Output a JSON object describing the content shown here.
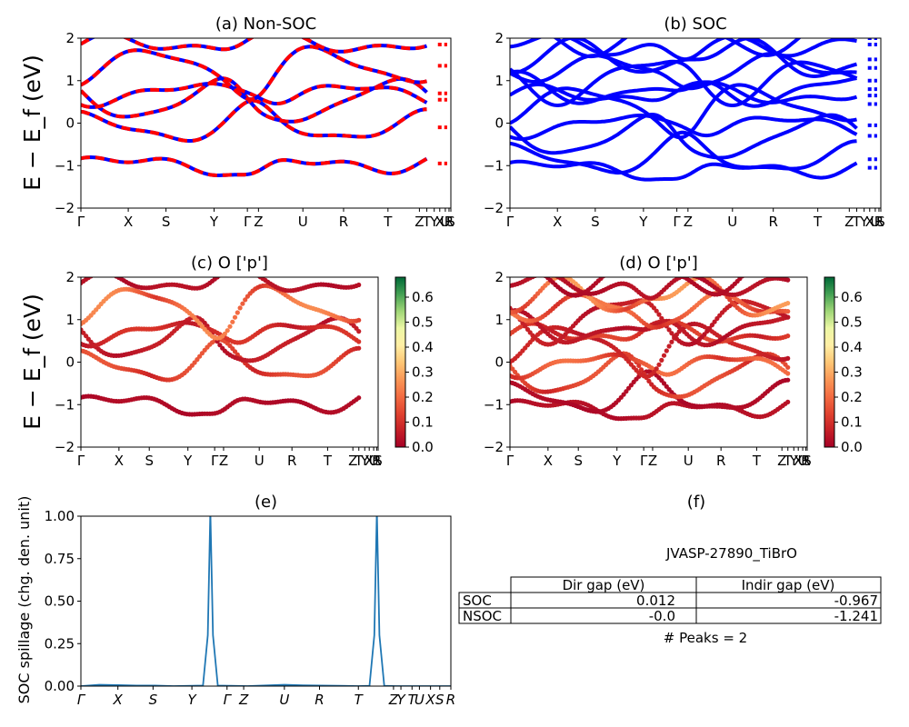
{
  "figure": {
    "material_id": "JVASP-27890_TiBrO",
    "ylabel_band": "E − E_f (eV)",
    "ylabel_spill": "SOC spillage (chg. den. unit)"
  },
  "chart_data": [
    {
      "id": "a",
      "type": "line",
      "title": "(a) Non-SOC",
      "ylim": [
        -2,
        2
      ],
      "yticks": [
        -2,
        -1,
        0,
        1,
        2
      ],
      "xticks": [
        "Γ",
        "X",
        "S",
        "Y",
        "Γ",
        "Z",
        "U",
        "R",
        "T",
        "Z",
        "T",
        "Y",
        "X",
        "U",
        "R",
        "S"
      ],
      "xtick_pos": [
        0,
        0.128,
        0.23,
        0.36,
        0.45,
        0.48,
        0.6,
        0.71,
        0.83,
        0.915,
        0.935,
        0.955,
        0.97,
        0.985,
        0.995,
        1.0
      ],
      "series": [
        {
          "style": "red dashed over blue",
          "bands": [
            -0.95,
            -0.1,
            0.55,
            0.7,
            1.35,
            1.85
          ]
        }
      ]
    },
    {
      "id": "b",
      "type": "line",
      "title": "(b) SOC",
      "ylim": [
        -2,
        2
      ],
      "yticks": [
        -2,
        -1,
        0,
        1,
        2
      ],
      "xticks": [
        "Γ",
        "X",
        "S",
        "Y",
        "Γ",
        "Z",
        "U",
        "R",
        "T",
        "Z",
        "T",
        "Y",
        "X",
        "U",
        "R",
        "S"
      ],
      "xtick_pos": [
        0,
        0.128,
        0.23,
        0.36,
        0.45,
        0.48,
        0.6,
        0.71,
        0.83,
        0.915,
        0.935,
        0.955,
        0.97,
        0.985,
        0.995,
        1.0
      ],
      "series": [
        {
          "style": "blue",
          "bands": [
            -1.05,
            -0.85,
            -0.3,
            -0.05,
            0.45,
            0.65,
            0.8,
            1.0,
            1.3,
            1.5,
            1.85,
            2.0
          ]
        }
      ]
    },
    {
      "id": "c",
      "type": "scatter",
      "title": "(c)  O ['p']",
      "ylim": [
        -2,
        2
      ],
      "yticks": [
        -2,
        -1,
        0,
        1,
        2
      ],
      "xticks": [
        "Γ",
        "X",
        "S",
        "Y",
        "Γ",
        "Z",
        "U",
        "R",
        "T",
        "Z",
        "T",
        "Y",
        "X",
        "U",
        "R",
        "S"
      ],
      "xtick_pos": [
        0,
        0.128,
        0.23,
        0.36,
        0.45,
        0.48,
        0.6,
        0.71,
        0.83,
        0.915,
        0.935,
        0.955,
        0.97,
        0.985,
        0.995,
        1.0
      ],
      "colorbar": {
        "min": 0.0,
        "max": 0.68,
        "ticks": [
          "0.0",
          "0.1",
          "0.2",
          "0.3",
          "0.4",
          "0.5",
          "0.6"
        ],
        "colormap": "RdYlGn"
      },
      "series": [
        {
          "bands": [
            -0.95,
            -0.1,
            0.55,
            0.7,
            1.35,
            1.85
          ],
          "weights": [
            0.02,
            0.12,
            0.05,
            0.08,
            0.18,
            0.03
          ]
        }
      ]
    },
    {
      "id": "d",
      "type": "scatter",
      "title": "(d) O ['p']",
      "ylim": [
        -2,
        2
      ],
      "yticks": [
        -2,
        -1,
        0,
        1,
        2
      ],
      "xticks": [
        "Γ",
        "X",
        "S",
        "Y",
        "Γ",
        "Z",
        "U",
        "R",
        "T",
        "Z",
        "T",
        "Y",
        "X",
        "U",
        "R",
        "S"
      ],
      "xtick_pos": [
        0,
        0.128,
        0.23,
        0.36,
        0.45,
        0.48,
        0.6,
        0.71,
        0.83,
        0.915,
        0.935,
        0.955,
        0.97,
        0.985,
        0.995,
        1.0
      ],
      "colorbar": {
        "min": 0.0,
        "max": 0.68,
        "ticks": [
          "0.0",
          "0.1",
          "0.2",
          "0.3",
          "0.4",
          "0.5",
          "0.6"
        ],
        "colormap": "RdYlGn"
      },
      "series": [
        {
          "bands": [
            -1.05,
            -0.85,
            -0.3,
            -0.05,
            0.45,
            0.65,
            0.8,
            1.0,
            1.3,
            1.5,
            1.85,
            2.0
          ],
          "weights": [
            0.03,
            0.02,
            0.12,
            0.15,
            0.06,
            0.1,
            0.04,
            0.05,
            0.16,
            0.2,
            0.03,
            0.02
          ]
        }
      ]
    },
    {
      "id": "e",
      "type": "line",
      "title": "(e)",
      "ylim": [
        0,
        1.0
      ],
      "yticks": [
        "0.00",
        "0.25",
        "0.50",
        "0.75",
        "1.00"
      ],
      "xticks": [
        "Γ",
        "X",
        "S",
        "Y",
        "Γ",
        "Z",
        "U",
        "R",
        "T",
        "Z",
        "Y",
        "T",
        "U",
        "X",
        "S",
        "R"
      ],
      "xtick_pos": [
        0,
        0.1,
        0.195,
        0.3,
        0.395,
        0.44,
        0.55,
        0.645,
        0.75,
        0.845,
        0.865,
        0.895,
        0.915,
        0.945,
        0.97,
        1.0
      ],
      "x": [
        0,
        0.05,
        0.1,
        0.15,
        0.2,
        0.25,
        0.3,
        0.33,
        0.343,
        0.35,
        0.357,
        0.37,
        0.4,
        0.45,
        0.5,
        0.55,
        0.6,
        0.65,
        0.7,
        0.75,
        0.78,
        0.793,
        0.8,
        0.807,
        0.82,
        0.85,
        0.9,
        0.95,
        1.0
      ],
      "values": [
        0.0,
        0.008,
        0.006,
        0.003,
        0.003,
        0.0,
        0.002,
        0.003,
        0.3,
        1.03,
        0.3,
        0.003,
        0.002,
        0.0,
        0.004,
        0.008,
        0.005,
        0.003,
        0.002,
        0.0,
        0.002,
        0.3,
        1.03,
        0.3,
        0.002,
        0.0,
        0.0,
        0.0,
        0.0
      ]
    }
  ],
  "panel_f": {
    "title": "(f)",
    "heading": "JVASP-27890_TiBrO",
    "col_headers": [
      "Dir gap (eV)",
      "Indir gap (eV)"
    ],
    "rows": [
      {
        "label": "SOC",
        "dir": "0.012",
        "indir": "-0.967"
      },
      {
        "label": "NSOC",
        "dir": "-0.0",
        "indir": "-1.241"
      }
    ],
    "peaks": "# Peaks = 2"
  }
}
